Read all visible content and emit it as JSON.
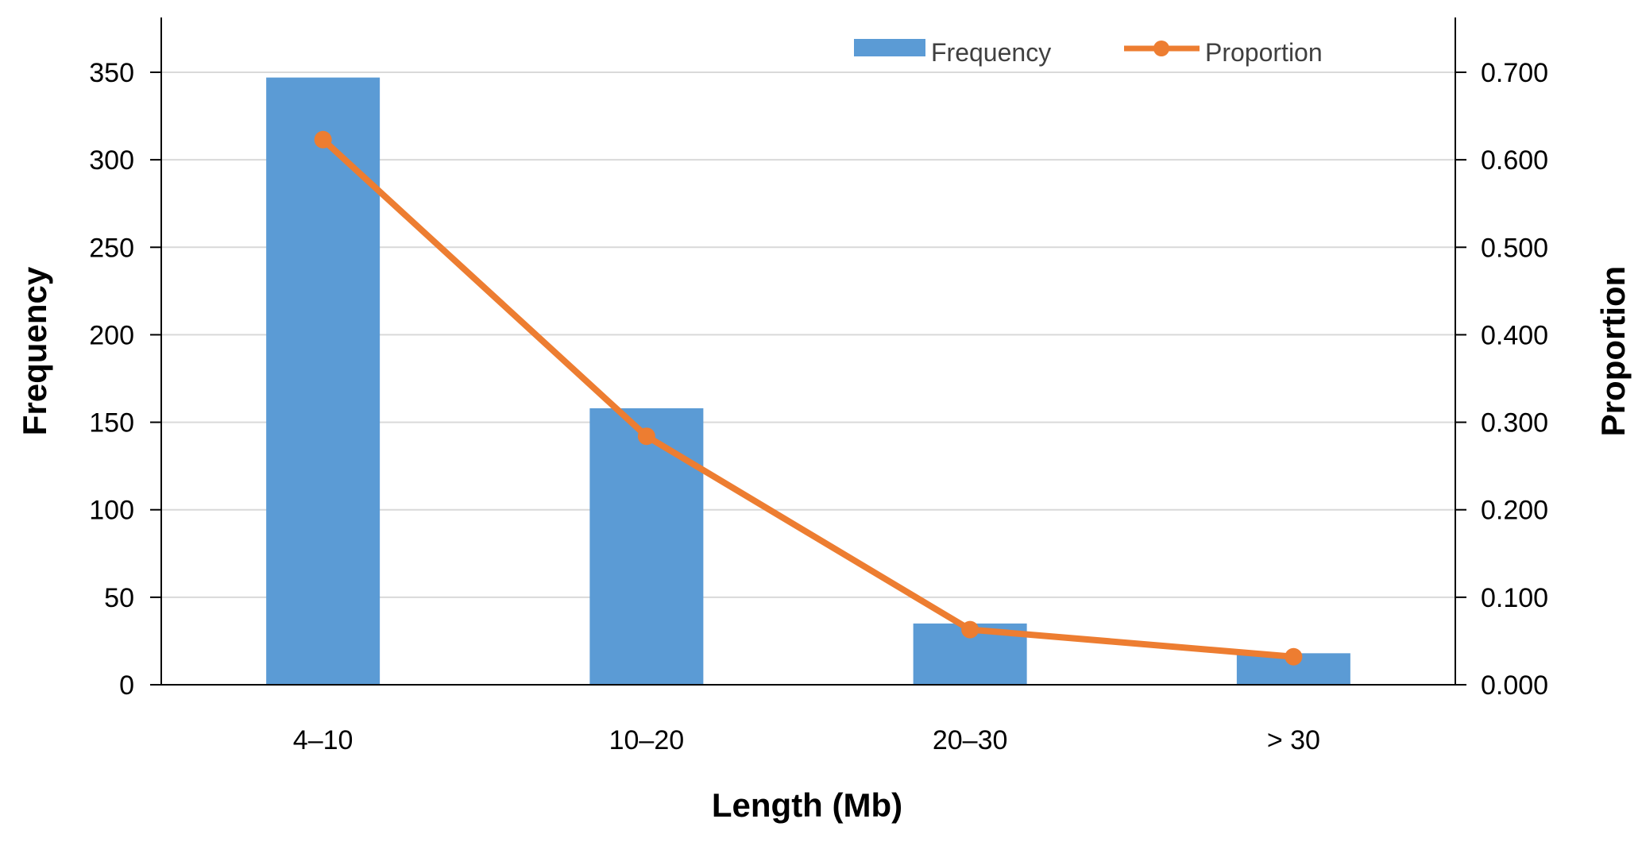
{
  "chart_data": {
    "type": "bar",
    "categories": [
      "4–10",
      "10–20",
      "20–30",
      "> 30"
    ],
    "series": [
      {
        "name": "Frequency",
        "type": "bar",
        "axis": "left",
        "color": "#5b9bd5",
        "values": [
          347,
          158,
          35,
          18
        ]
      },
      {
        "name": "Proportion",
        "type": "line",
        "axis": "right",
        "color": "#ed7d31",
        "values": [
          0.623,
          0.284,
          0.063,
          0.032
        ]
      }
    ],
    "xlabel": "Length (Mb)",
    "ylabel": "Frequency",
    "y2label": "Proportion",
    "ylim": [
      0,
      350
    ],
    "yticks": [
      "0",
      "50",
      "100",
      "150",
      "200",
      "250",
      "300",
      "350"
    ],
    "y2lim": [
      0,
      0.7
    ],
    "y2ticks": [
      "0.000",
      "0.100",
      "0.200",
      "0.300",
      "0.400",
      "0.500",
      "0.600",
      "0.700"
    ],
    "grid": true,
    "legend_position": "top-right"
  }
}
